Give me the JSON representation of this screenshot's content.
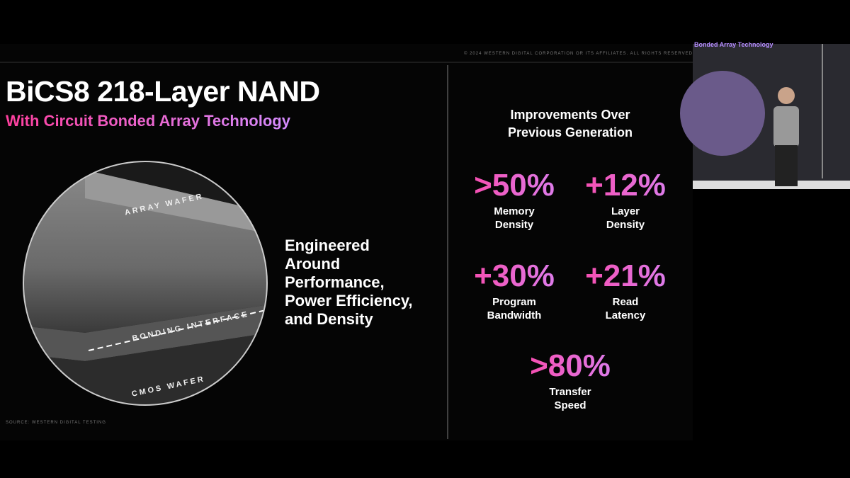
{
  "header": {
    "copyright": "© 2024 WESTERN DIGITAL CORPORATION OR ITS AFFILIATES. ALL RIGHTS RESERVED",
    "title": "BiCS8 218-Layer NAND",
    "subtitle": "With Circuit Bonded Array Technology"
  },
  "diagram": {
    "labels": [
      "ARRAY WAFER",
      "BONDING INTERFACE",
      "CMOS WAFER"
    ],
    "source": "SOURCE: WESTERN DIGITAL TESTING"
  },
  "tagline": [
    "Engineered",
    "Around",
    "Performance,",
    "Power Efficiency,",
    "and Density"
  ],
  "improvements": {
    "heading": [
      "Improvements Over",
      "Previous Generation"
    ],
    "stats": [
      {
        "value": ">50%",
        "label": [
          "Memory",
          "Density"
        ]
      },
      {
        "value": "+12%",
        "label": [
          "Layer",
          "Density"
        ]
      },
      {
        "value": "+30%",
        "label": [
          "Program",
          "Bandwidth"
        ]
      },
      {
        "value": "+21%",
        "label": [
          "Read",
          "Latency"
        ]
      },
      {
        "value": ">80%",
        "label": [
          "Transfer",
          "Speed"
        ]
      }
    ]
  },
  "inset": {
    "caption": "Bonded Array Technology"
  }
}
